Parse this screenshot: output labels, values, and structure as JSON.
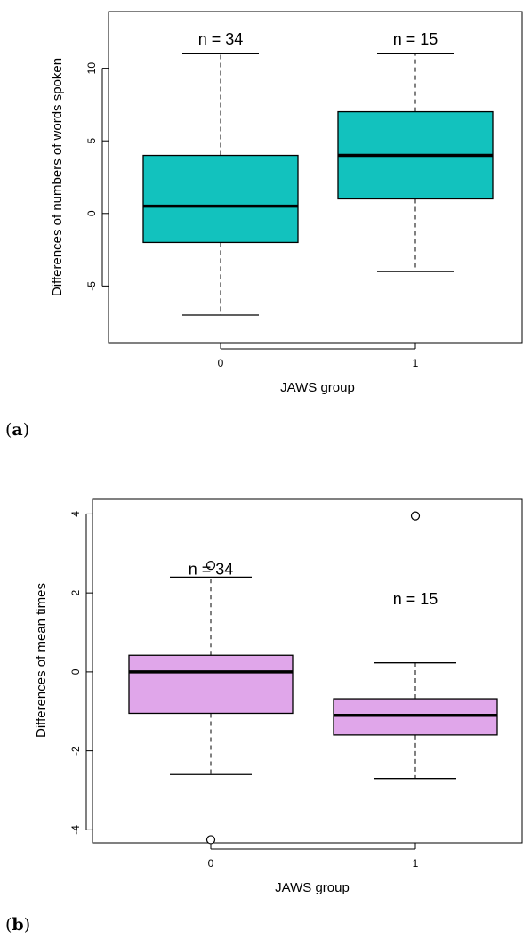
{
  "chart_data": [
    {
      "type": "boxplot",
      "panel_label": "a",
      "xlabel": "JAWS group",
      "ylabel": "Differences of numbers of words spoken",
      "categories": [
        "0",
        "1"
      ],
      "ylim": [
        -8.9,
        13.9
      ],
      "yticks": [
        -5,
        0,
        5,
        10
      ],
      "ytick_labels": [
        "-5",
        "0",
        "5",
        "10"
      ],
      "box_color": "#12c2be",
      "boxes": [
        {
          "category": "0",
          "count_label": "n = 34",
          "count_y": 12,
          "whisker_low": -7,
          "q1": -2,
          "median": 0.5,
          "q3": 4,
          "whisker_high": 11,
          "outliers": []
        },
        {
          "category": "1",
          "count_label": "n = 15",
          "count_y": 12,
          "whisker_low": -4,
          "q1": 1,
          "median": 4,
          "q3": 7,
          "whisker_high": 11,
          "outliers": []
        }
      ]
    },
    {
      "type": "boxplot",
      "panel_label": "b",
      "xlabel": "JAWS group",
      "ylabel": "Differences of mean times",
      "categories": [
        "0",
        "1"
      ],
      "ylim": [
        -4.33,
        4.37
      ],
      "yticks": [
        -4,
        -2,
        0,
        2,
        4
      ],
      "ytick_labels": [
        "-4",
        "-2",
        "0",
        "2",
        "4"
      ],
      "box_color": "#e0a6ea",
      "boxes": [
        {
          "category": "0",
          "count_label": "n = 34",
          "count_y": 2.6,
          "whisker_low": -2.6,
          "q1": -1.05,
          "median": 0.0,
          "q3": 0.42,
          "whisker_high": 2.4,
          "outliers": [
            2.7,
            -4.25
          ]
        },
        {
          "category": "1",
          "count_label": "n = 15",
          "count_y": 1.85,
          "whisker_low": -2.7,
          "q1": -1.6,
          "median": -1.1,
          "q3": -0.68,
          "whisker_high": 0.23,
          "outliers": [
            3.95
          ]
        }
      ]
    }
  ]
}
